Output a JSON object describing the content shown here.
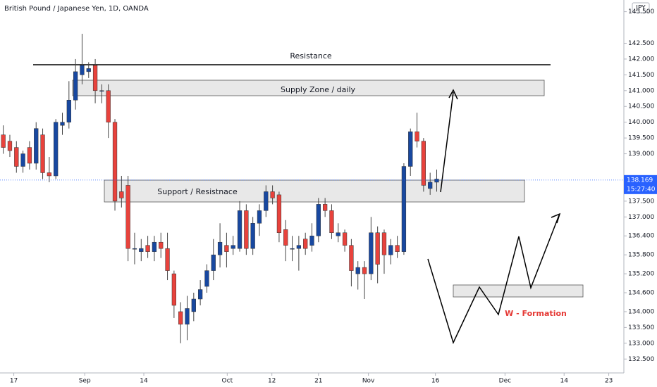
{
  "chart_data": {
    "type": "candlestick",
    "title": "British Pound / Japanese Yen, 1D, OANDA",
    "currency": "JPY",
    "last_price": 138.169,
    "countdown": "15:27:40",
    "up_color": "#1848a0",
    "down_color": "#e8423c",
    "open": [
      139.6,
      139.4,
      139.2,
      138.6,
      139.2,
      138.7,
      139.6,
      138.4,
      138.3,
      139.9,
      140.0,
      140.7,
      141.5,
      141.6,
      141.8,
      141.0,
      141.0,
      140.0,
      137.8,
      138.0,
      136.0,
      135.9,
      136.1,
      135.9,
      136.2,
      136.0,
      135.2,
      134.0,
      133.6,
      134.0,
      134.4,
      134.8,
      135.3,
      135.8,
      136.1,
      136.0,
      136.0,
      137.2,
      136.0,
      136.8,
      137.2,
      137.8,
      137.7,
      136.6,
      136.0,
      136.0,
      136.3,
      136.1,
      136.4,
      137.4,
      137.2,
      136.4,
      136.5,
      136.1,
      135.2,
      135.4,
      135.2,
      136.5,
      136.5,
      135.8,
      136.1,
      135.9,
      138.6,
      139.7,
      139.4,
      137.9,
      138.1
    ],
    "high": [
      139.9,
      139.6,
      139.4,
      139.1,
      139.4,
      140.0,
      139.8,
      138.9,
      140.1,
      140.3,
      141.3,
      142.0,
      142.8,
      141.9,
      142.0,
      141.2,
      141.2,
      140.1,
      138.3,
      138.3,
      136.5,
      136.3,
      136.4,
      136.4,
      136.5,
      136.5,
      135.3,
      134.3,
      134.5,
      134.6,
      135.0,
      135.5,
      136.3,
      136.8,
      136.5,
      136.4,
      137.5,
      137.4,
      137.0,
      137.4,
      138.0,
      138.0,
      137.8,
      136.9,
      136.4,
      136.4,
      136.5,
      136.8,
      137.6,
      137.6,
      137.4,
      136.8,
      136.6,
      136.3,
      135.6,
      135.6,
      137.0,
      136.7,
      136.6,
      136.3,
      136.4,
      138.7,
      139.8,
      140.3,
      139.5,
      138.4,
      138.5
    ],
    "low": [
      139.0,
      138.9,
      138.4,
      138.4,
      138.5,
      138.5,
      138.2,
      138.1,
      138.2,
      139.6,
      139.8,
      140.4,
      141.2,
      141.4,
      140.6,
      140.6,
      139.5,
      137.2,
      137.3,
      135.6,
      135.5,
      135.6,
      135.7,
      135.6,
      135.7,
      135.0,
      133.8,
      133.0,
      133.1,
      133.7,
      134.2,
      134.6,
      135.0,
      135.4,
      135.4,
      135.8,
      135.9,
      135.8,
      135.8,
      136.4,
      137.0,
      137.4,
      136.2,
      135.6,
      135.6,
      135.3,
      135.8,
      135.9,
      136.2,
      137.0,
      136.3,
      136.2,
      135.9,
      134.8,
      134.7,
      134.4,
      135.0,
      134.9,
      135.2,
      135.5,
      135.7,
      135.8,
      138.3,
      139.2,
      137.8,
      137.7,
      137.8
    ],
    "close": [
      139.2,
      139.1,
      138.6,
      139.0,
      138.7,
      139.8,
      138.4,
      138.3,
      140.0,
      140.0,
      140.7,
      141.6,
      141.8,
      141.7,
      141.0,
      141.0,
      140.0,
      137.5,
      137.6,
      136.0,
      136.0,
      136.0,
      135.9,
      136.2,
      136.0,
      135.3,
      134.2,
      133.6,
      134.1,
      134.4,
      134.7,
      135.3,
      135.8,
      136.2,
      135.9,
      136.1,
      137.2,
      136.0,
      136.8,
      137.2,
      137.8,
      137.6,
      136.5,
      136.1,
      136.0,
      136.1,
      136.0,
      136.4,
      137.4,
      137.2,
      136.5,
      136.5,
      136.1,
      135.3,
      135.4,
      135.2,
      136.5,
      135.5,
      135.8,
      136.1,
      135.9,
      138.6,
      139.7,
      139.4,
      138.0,
      138.1,
      138.2
    ],
    "xlim": [
      -0.5,
      94.5
    ],
    "xticks": [
      {
        "value": 1.6,
        "label": "17"
      },
      {
        "value": 12.4,
        "label": "Sep"
      },
      {
        "value": 21.4,
        "label": "14"
      },
      {
        "value": 34.1,
        "label": "Oct"
      },
      {
        "value": 40.9,
        "label": "12"
      },
      {
        "value": 48.0,
        "label": "21"
      },
      {
        "value": 55.6,
        "label": "Nov"
      },
      {
        "value": 65.8,
        "label": "16"
      },
      {
        "value": 76.4,
        "label": "Dec"
      },
      {
        "value": 85.4,
        "label": "14"
      },
      {
        "value": 92.2,
        "label": "23"
      }
    ],
    "ylim": [
      132.06,
      143.87
    ],
    "yticks": [
      {
        "value": 132.5,
        "label": "132.500"
      },
      {
        "value": 133,
        "label": "133.000"
      },
      {
        "value": 133.5,
        "label": "133.500"
      },
      {
        "value": 134,
        "label": "134.000"
      },
      {
        "value": 134.6,
        "label": "134.600"
      },
      {
        "value": 135.2,
        "label": "135.200"
      },
      {
        "value": 135.8,
        "label": "135.800"
      },
      {
        "value": 136.4,
        "label": "136.400"
      },
      {
        "value": 137,
        "label": "137.000"
      },
      {
        "value": 137.5,
        "label": "137.500"
      },
      {
        "value": 139,
        "label": "139.000"
      },
      {
        "value": 139.5,
        "label": "139.500"
      },
      {
        "value": 140,
        "label": "140.000"
      },
      {
        "value": 140.5,
        "label": "140.500"
      },
      {
        "value": 141,
        "label": "141.000"
      },
      {
        "value": 141.5,
        "label": "141.500"
      },
      {
        "value": 142,
        "label": "142.000"
      },
      {
        "value": 142.5,
        "label": "142.500"
      },
      {
        "value": 143.5,
        "label": "143.500"
      }
    ],
    "annotations": {
      "resistance": "Resistance",
      "supply_zone": "Supply Zone / daily",
      "support_resistance": "Support / Resistnace",
      "w_formation": "W - Formation"
    }
  }
}
